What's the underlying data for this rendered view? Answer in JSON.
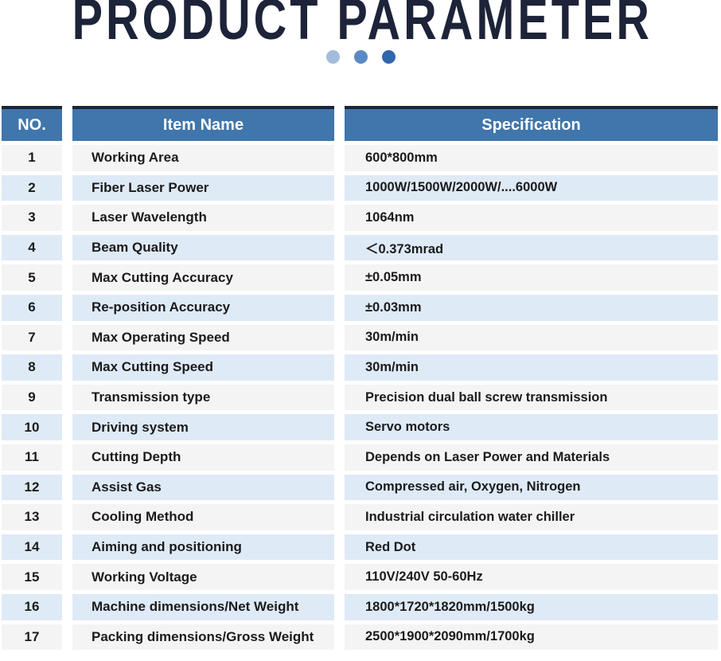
{
  "title": "PRODUCT PARAMETER",
  "theme": {
    "title_color": "#1d2338",
    "header_bg": "#4076ab",
    "header_top_border": "#1d2534",
    "row_odd_bg": "#f4f4f5",
    "row_even_bg": "#dfeaf7",
    "text_color": "#1b1b1b",
    "dot1": "#a3bcdc",
    "dot2": "#5a8ac5",
    "dot3": "#3167ab"
  },
  "table": {
    "headers": {
      "no": "NO.",
      "item": "Item Name",
      "spec": "Specification"
    },
    "rows": [
      {
        "no": "1",
        "item": "Working Area",
        "spec": "600*800mm"
      },
      {
        "no": "2",
        "item": "Fiber Laser Power",
        "spec": "1000W/1500W/2000W/....6000W"
      },
      {
        "no": "3",
        "item": "Laser Wavelength",
        "spec": "1064nm"
      },
      {
        "no": "4",
        "item": "Beam Quality",
        "spec": "＜0.373mrad"
      },
      {
        "no": "5",
        "item": "Max Cutting Accuracy",
        "spec": "±0.05mm"
      },
      {
        "no": "6",
        "item": "Re-position Accuracy",
        "spec": "±0.03mm"
      },
      {
        "no": "7",
        "item": "Max Operating Speed",
        "spec": "30m/min"
      },
      {
        "no": "8",
        "item": "Max Cutting Speed",
        "spec": "30m/min"
      },
      {
        "no": "9",
        "item": "Transmission type",
        "spec": "Precision dual ball screw transmission"
      },
      {
        "no": "10",
        "item": "Driving system",
        "spec": "Servo motors"
      },
      {
        "no": "11",
        "item": "Cutting Depth",
        "spec": "Depends on Laser Power and Materials"
      },
      {
        "no": "12",
        "item": "Assist Gas",
        "spec": "Compressed air, Oxygen, Nitrogen"
      },
      {
        "no": "13",
        "item": "Cooling Method",
        "spec": "Industrial circulation water chiller"
      },
      {
        "no": "14",
        "item": "Aiming and positioning",
        "spec": "Red Dot"
      },
      {
        "no": "15",
        "item": "Working Voltage",
        "spec": "110V/240V 50-60Hz"
      },
      {
        "no": "16",
        "item": "Machine dimensions/Net Weight",
        "spec": "1800*1720*1820mm/1500kg"
      },
      {
        "no": "17",
        "item": "Packing dimensions/Gross Weight",
        "spec": "2500*1900*2090mm/1700kg"
      }
    ]
  }
}
